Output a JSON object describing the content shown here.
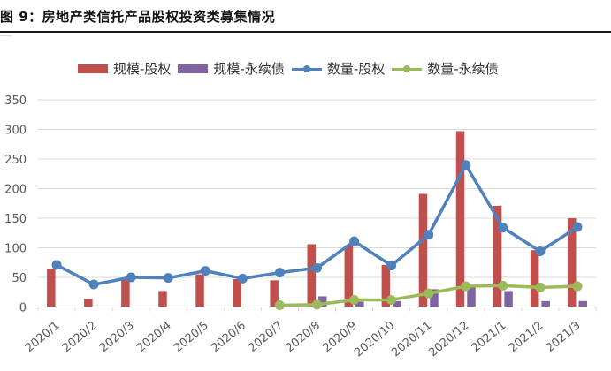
{
  "figure": {
    "title": "图 9：房地产类信托产品股权投资类募集情况"
  },
  "legend": [
    {
      "label": "规模-股权",
      "kind": "bar",
      "color": "#C0504D"
    },
    {
      "label": "规模-永续债",
      "kind": "bar",
      "color": "#8064A2"
    },
    {
      "label": "数量-股权",
      "kind": "line",
      "color": "#4F81BD"
    },
    {
      "label": "数量-永续债",
      "kind": "line",
      "color": "#9BBB59"
    }
  ],
  "chart_data": {
    "type": "bar",
    "title": "房地产类信托产品股权投资类募集情况",
    "xlabel": "",
    "ylabel": "",
    "ylim": [
      0,
      350
    ],
    "yticks": [
      0,
      50,
      100,
      150,
      200,
      250,
      300,
      350
    ],
    "grid": true,
    "legend_position": "top",
    "categories": [
      "2020/1",
      "2020/2",
      "2020/3",
      "2020/4",
      "2020/5",
      "2020/6",
      "2020/7",
      "2020/8",
      "2020/9",
      "2020/10",
      "2020/11",
      "2020/12",
      "2021/1",
      "2021/2",
      "2021/3"
    ],
    "series": [
      {
        "name": "规模-股权",
        "type": "bar",
        "color": "#C0504D",
        "values": [
          65,
          14,
          49,
          27,
          55,
          47,
          45,
          106,
          104,
          71,
          191,
          297,
          171,
          96,
          150
        ]
      },
      {
        "name": "规模-永续债",
        "type": "bar",
        "color": "#8064A2",
        "values": [
          null,
          null,
          null,
          null,
          null,
          null,
          null,
          18,
          9,
          10,
          30,
          33,
          27,
          10,
          10
        ]
      },
      {
        "name": "数量-股权",
        "type": "line",
        "color": "#4F81BD",
        "values": [
          71,
          38,
          50,
          49,
          61,
          48,
          58,
          66,
          111,
          70,
          122,
          240,
          134,
          94,
          135
        ]
      },
      {
        "name": "数量-永续债",
        "type": "line",
        "color": "#9BBB59",
        "values": [
          null,
          null,
          null,
          null,
          null,
          null,
          3,
          4,
          12,
          12,
          23,
          35,
          36,
          33,
          35
        ]
      }
    ]
  }
}
